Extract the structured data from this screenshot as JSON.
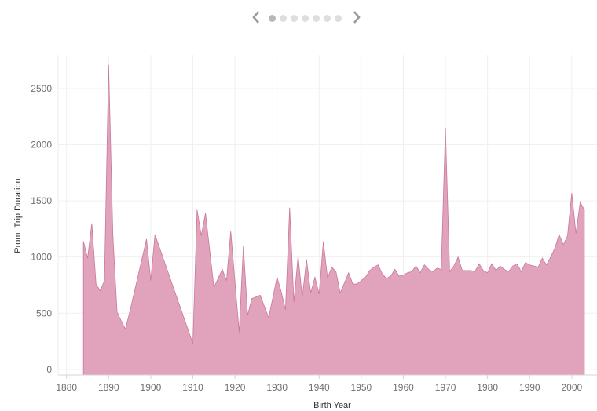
{
  "colors": {
    "area_fill": "#e0a3bb",
    "area_stroke": "#c9789a",
    "grid": "#f0f0f0",
    "axis": "#d4d4d4",
    "pager_active": "#b8b8b8",
    "pager_inactive": "#dedede",
    "pager_arrow": "#9a9a9a"
  },
  "pager": {
    "prev_icon": "chevron-left-icon",
    "next_icon": "chevron-right-icon",
    "page_count": 7,
    "active_page": 1
  },
  "chart_data": {
    "type": "area",
    "xlabel": "Birth Year",
    "ylabel": "Prom. Trip Duration",
    "xlim": [
      1878,
      2006
    ],
    "ylim": [
      -50,
      2800
    ],
    "x_ticks": [
      1880,
      1890,
      1900,
      1910,
      1920,
      1930,
      1940,
      1950,
      1960,
      1970,
      1980,
      1990,
      2000
    ],
    "y_ticks": [
      0,
      500,
      1000,
      1500,
      2000,
      2500
    ],
    "grid": true,
    "x": [
      1884,
      1885,
      1886,
      1887,
      1888,
      1889,
      1890,
      1891,
      1892,
      1893,
      1894,
      1895,
      1899,
      1900,
      1901,
      1910,
      1911,
      1912,
      1913,
      1915,
      1917,
      1918,
      1919,
      1921,
      1922,
      1923,
      1924,
      1926,
      1928,
      1930,
      1931,
      1932,
      1933,
      1934,
      1935,
      1936,
      1937,
      1938,
      1939,
      1940,
      1941,
      1942,
      1943,
      1944,
      1945,
      1947,
      1948,
      1949,
      1950,
      1951,
      1952,
      1953,
      1954,
      1955,
      1956,
      1957,
      1958,
      1959,
      1960,
      1961,
      1962,
      1963,
      1964,
      1965,
      1966,
      1967,
      1968,
      1969,
      1970,
      1971,
      1972,
      1973,
      1974,
      1975,
      1976,
      1977,
      1978,
      1979,
      1980,
      1981,
      1982,
      1983,
      1984,
      1985,
      1986,
      1987,
      1988,
      1989,
      1990,
      1991,
      1992,
      1993,
      1994,
      1995,
      1996,
      1997,
      1998,
      1999,
      2000,
      2001,
      2002,
      2003
    ],
    "values": [
      1140,
      990,
      1300,
      760,
      700,
      790,
      2710,
      1200,
      510,
      430,
      360,
      510,
      1160,
      790,
      1200,
      230,
      1420,
      1190,
      1390,
      730,
      890,
      790,
      1230,
      330,
      1100,
      480,
      630,
      660,
      460,
      820,
      690,
      530,
      1440,
      600,
      1010,
      640,
      980,
      680,
      820,
      670,
      1140,
      810,
      910,
      870,
      680,
      860,
      760,
      760,
      790,
      820,
      880,
      910,
      930,
      850,
      810,
      830,
      890,
      830,
      840,
      860,
      870,
      920,
      860,
      930,
      890,
      870,
      900,
      890,
      2150,
      870,
      920,
      1000,
      880,
      880,
      880,
      870,
      940,
      880,
      860,
      940,
      880,
      920,
      890,
      870,
      920,
      940,
      870,
      950,
      930,
      920,
      910,
      990,
      930,
      1000,
      1080,
      1200,
      1110,
      1190,
      1570,
      1210,
      1490,
      1420
    ]
  }
}
